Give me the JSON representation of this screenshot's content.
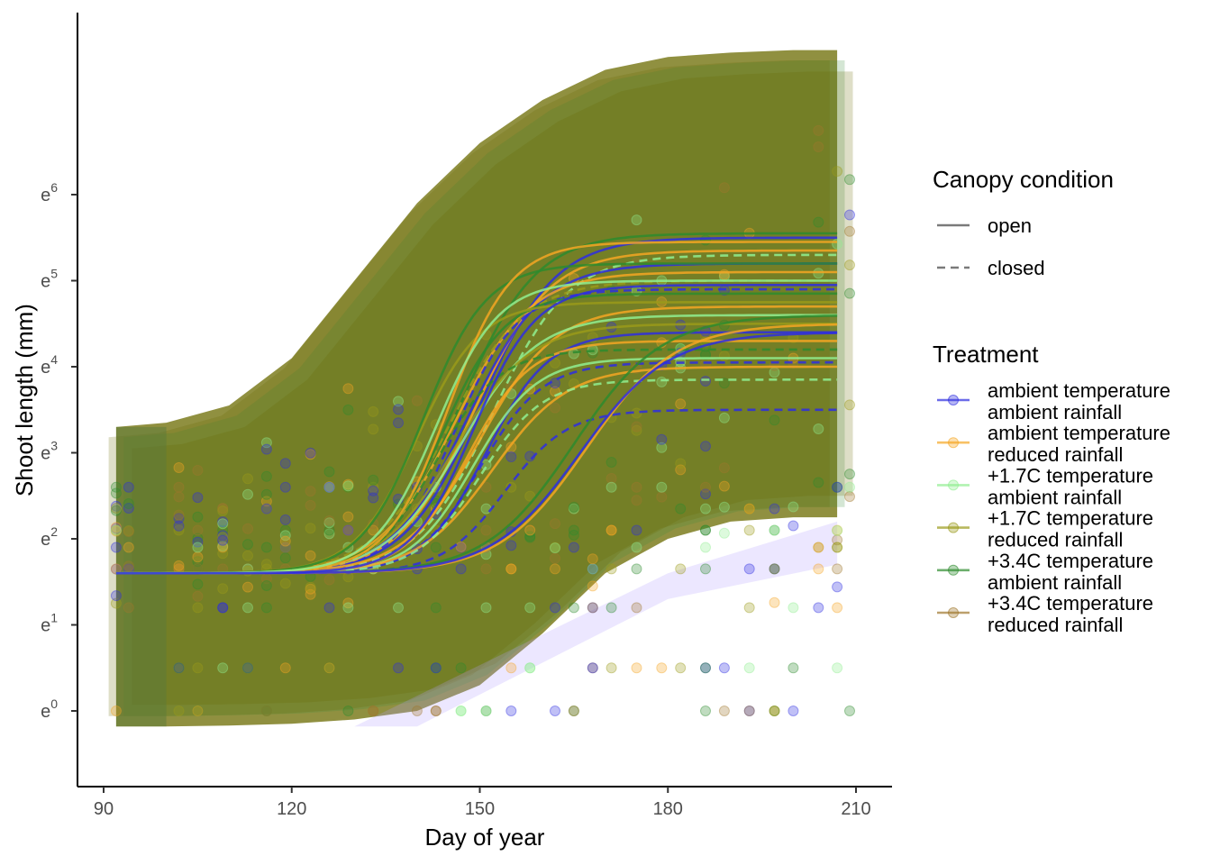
{
  "chart_data": {
    "type": "line",
    "xlabel": "Day of year",
    "ylabel": "Shoot length (mm)",
    "xlim": [
      88,
      215
    ],
    "ylim_log": [
      -0.9,
      8.0
    ],
    "x_ticks": [
      90,
      120,
      150,
      180,
      210
    ],
    "y_ticks": [
      {
        "value": 0,
        "base": "e",
        "exp": "0"
      },
      {
        "value": 1,
        "base": "e",
        "exp": "1"
      },
      {
        "value": 2,
        "base": "e",
        "exp": "2"
      },
      {
        "value": 3,
        "base": "e",
        "exp": "3"
      },
      {
        "value": 4,
        "base": "e",
        "exp": "4"
      },
      {
        "value": 5,
        "base": "e",
        "exp": "5"
      },
      {
        "value": 6,
        "base": "e",
        "exp": "6"
      }
    ],
    "ribbon": {
      "color": "#6b6b00",
      "x": [
        92,
        100,
        110,
        120,
        130,
        140,
        150,
        160,
        170,
        180,
        190,
        200,
        207
      ],
      "upper": [
        3.3,
        3.35,
        3.55,
        4.1,
        5.0,
        5.9,
        6.6,
        7.1,
        7.45,
        7.6,
        7.65,
        7.68,
        7.68
      ],
      "lower": [
        -0.18,
        -0.18,
        -0.17,
        -0.15,
        -0.1,
        0.0,
        0.3,
        0.9,
        1.6,
        2.0,
        2.2,
        2.25,
        2.25
      ]
    },
    "series": [
      {
        "name": "ambient temperature\nambient rainfall",
        "color": "#2e2ee0"
      },
      {
        "name": "ambient temperature\nreduced rainfall",
        "color": "#f5a623"
      },
      {
        "name": "+1.7C temperature\nambient rainfall",
        "color": "#90ee90"
      },
      {
        "name": "+1.7C temperature\nreduced rainfall",
        "color": "#9a9a1a"
      },
      {
        "name": "+3.4C temperature\nambient rainfall",
        "color": "#2e8b2e"
      },
      {
        "name": "+3.4C temperature\nreduced rainfall",
        "color": "#a0782d"
      }
    ],
    "curves": [
      {
        "series": 4,
        "dash": false,
        "final": 5.55,
        "mid": 147,
        "width": 6
      },
      {
        "series": 0,
        "dash": false,
        "final": 5.5,
        "mid": 150,
        "width": 6
      },
      {
        "series": 1,
        "dash": false,
        "final": 5.35,
        "mid": 149,
        "width": 6
      },
      {
        "series": 2,
        "dash": true,
        "final": 5.3,
        "mid": 152,
        "width": 6
      },
      {
        "series": 0,
        "dash": false,
        "final": 5.2,
        "mid": 148,
        "width": 6
      },
      {
        "series": 1,
        "dash": false,
        "final": 5.1,
        "mid": 146,
        "width": 6
      },
      {
        "series": 3,
        "dash": true,
        "final": 5.0,
        "mid": 145,
        "width": 6
      },
      {
        "series": 0,
        "dash": true,
        "final": 4.9,
        "mid": 146,
        "width": 5
      },
      {
        "series": 4,
        "dash": false,
        "final": 4.85,
        "mid": 144,
        "width": 5
      },
      {
        "series": 1,
        "dash": false,
        "final": 4.7,
        "mid": 150,
        "width": 6
      },
      {
        "series": 2,
        "dash": false,
        "final": 4.6,
        "mid": 147,
        "width": 6
      },
      {
        "series": 3,
        "dash": false,
        "final": 4.5,
        "mid": 146,
        "width": 6
      },
      {
        "series": 0,
        "dash": false,
        "final": 4.4,
        "mid": 151,
        "width": 5
      },
      {
        "series": 1,
        "dash": false,
        "final": 4.3,
        "mid": 148,
        "width": 5
      },
      {
        "series": 4,
        "dash": true,
        "final": 4.2,
        "mid": 143,
        "width": 5
      },
      {
        "series": 2,
        "dash": false,
        "final": 4.1,
        "mid": 149,
        "width": 5
      },
      {
        "series": 0,
        "dash": true,
        "final": 4.05,
        "mid": 150,
        "width": 5
      },
      {
        "series": 1,
        "dash": false,
        "final": 4.0,
        "mid": 152,
        "width": 6
      },
      {
        "series": 2,
        "dash": true,
        "final": 3.85,
        "mid": 150,
        "width": 5
      },
      {
        "series": 0,
        "dash": true,
        "final": 3.5,
        "mid": 154,
        "width": 5
      },
      {
        "series": 4,
        "dash": false,
        "final": 4.6,
        "mid": 165,
        "width": 7
      },
      {
        "series": 1,
        "dash": false,
        "final": 4.5,
        "mid": 167,
        "width": 7
      },
      {
        "series": 0,
        "dash": false,
        "final": 4.4,
        "mid": 166,
        "width": 7
      },
      {
        "series": 3,
        "dash": false,
        "final": 4.75,
        "mid": 140,
        "width": 5
      },
      {
        "series": 4,
        "dash": false,
        "final": 5.2,
        "mid": 141,
        "width": 5
      },
      {
        "series": 1,
        "dash": false,
        "final": 5.45,
        "mid": 145,
        "width": 5
      },
      {
        "series": 2,
        "dash": false,
        "final": 5.0,
        "mid": 143,
        "width": 5
      },
      {
        "series": 0,
        "dash": false,
        "final": 4.95,
        "mid": 149,
        "width": 5
      }
    ]
  },
  "legend": {
    "canopy": {
      "title": "Canopy condition",
      "items": [
        {
          "label": "open",
          "dash": false
        },
        {
          "label": "closed",
          "dash": true
        }
      ]
    },
    "treatment": {
      "title": "Treatment"
    }
  }
}
